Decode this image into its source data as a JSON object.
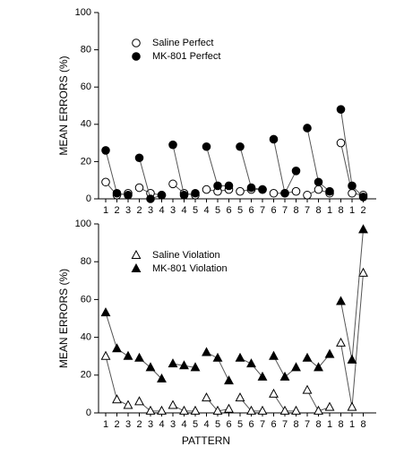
{
  "chart_data": [
    {
      "type": "line",
      "y_label": "MEAN ERRORS (%)",
      "categories": [
        "1",
        "2",
        "3",
        "2",
        "3",
        "4",
        "3",
        "4",
        "5",
        "4",
        "5",
        "6",
        "5",
        "6",
        "7",
        "6",
        "7",
        "8",
        "7",
        "8",
        "1",
        "8",
        "1",
        "2"
      ],
      "ylim": [
        0,
        100
      ],
      "yticks": [
        0,
        20,
        40,
        60,
        80,
        100
      ],
      "series": [
        {
          "name": "Saline Perfect",
          "color": "#ffffff",
          "marker": "circle",
          "values": [
            9,
            2,
            3,
            6,
            3,
            2,
            8,
            3,
            2,
            5,
            4,
            5,
            4,
            5,
            5,
            3,
            3,
            4,
            2,
            5,
            3,
            30,
            3,
            2
          ]
        },
        {
          "name": "MK-801 Perfect",
          "color": "#000000",
          "marker": "circle",
          "values": [
            26,
            3,
            2,
            22,
            0,
            2,
            29,
            2,
            3,
            28,
            7,
            7,
            28,
            6,
            5,
            32,
            3,
            15,
            38,
            9,
            4,
            48,
            7,
            1
          ]
        }
      ]
    },
    {
      "type": "line",
      "y_label": "MEAN ERRORS (%)",
      "x_label": "PATTERN",
      "categories": [
        "1",
        "2",
        "3",
        "2",
        "3",
        "4",
        "3",
        "4",
        "5",
        "4",
        "5",
        "6",
        "5",
        "6",
        "7",
        "6",
        "7",
        "8",
        "7",
        "8",
        "1",
        "8",
        "1",
        "8"
      ],
      "ylim": [
        0,
        100
      ],
      "yticks": [
        0,
        20,
        40,
        60,
        80,
        100
      ],
      "series": [
        {
          "name": "Saline Violation",
          "color": "#ffffff",
          "marker": "triangle",
          "values": [
            30,
            7,
            4,
            6,
            1,
            1,
            4,
            1,
            1,
            8,
            1,
            2,
            8,
            1,
            1,
            10,
            1,
            1,
            12,
            1,
            3,
            37,
            3,
            74
          ]
        },
        {
          "name": "MK-801 Violation",
          "color": "#000000",
          "marker": "triangle",
          "values": [
            53,
            34,
            30,
            29,
            24,
            18,
            26,
            25,
            24,
            32,
            29,
            17,
            29,
            26,
            19,
            30,
            19,
            24,
            29,
            24,
            31,
            59,
            28,
            97
          ]
        }
      ]
    }
  ]
}
